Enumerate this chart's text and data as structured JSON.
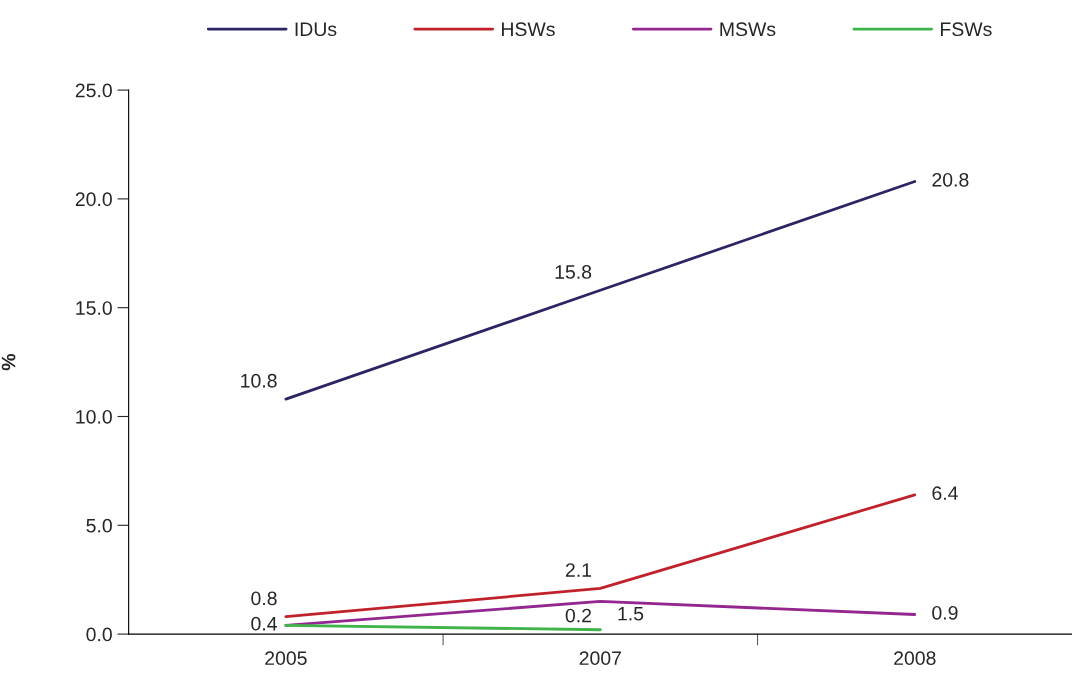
{
  "chart_data": {
    "type": "line",
    "ylabel": "%",
    "categories": [
      "2005",
      "2007",
      "2008"
    ],
    "series": [
      {
        "name": "IDUs",
        "color": "#2b2563",
        "values": [
          10.8,
          15.8,
          20.8
        ],
        "value_labels": [
          "10.8",
          "15.8",
          "20.8"
        ]
      },
      {
        "name": "HSWs",
        "color": "#c0222b",
        "values": [
          0.8,
          2.1,
          6.4
        ],
        "value_labels": [
          "0.8",
          "2.1",
          "6.4"
        ]
      },
      {
        "name": "MSWs",
        "color": "#93278f",
        "values": [
          0.4,
          1.5,
          0.9
        ],
        "value_labels": [
          "0.4",
          "1.5",
          "0.9"
        ]
      },
      {
        "name": "FSWs",
        "color": "#3fb44a",
        "values": [
          0.4,
          0.2,
          null
        ],
        "value_labels": [
          null,
          "0.2",
          null
        ]
      }
    ],
    "ylim": [
      0,
      25
    ],
    "yticks": [
      {
        "value": 0,
        "label": "0.0"
      },
      {
        "value": 5,
        "label": "5.0"
      },
      {
        "value": 10,
        "label": "10.0"
      },
      {
        "value": 15,
        "label": "15.0"
      },
      {
        "value": 20,
        "label": "20.0"
      },
      {
        "value": 25,
        "label": "25.0"
      }
    ],
    "grid": false,
    "legend": "top",
    "marker": "none",
    "line_style": "solid"
  }
}
